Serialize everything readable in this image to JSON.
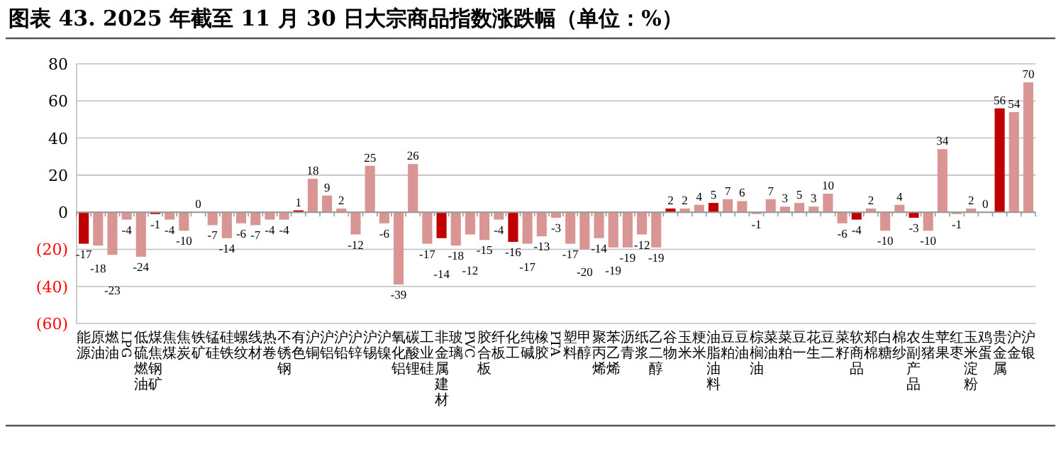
{
  "chart_data": {
    "type": "bar",
    "title": "图表 43. 2025 年截至 11 月 30 日大宗商品指数涨跌幅（单位：%）",
    "categories": [
      "能源",
      "原油",
      "燃油",
      "LPG",
      "低硫燃油",
      "煤焦钢矿",
      "焦煤",
      "焦炭",
      "铁矿",
      "锰硅",
      "硅铁",
      "螺纹",
      "线材",
      "热卷",
      "不锈钢",
      "有色",
      "沪铜",
      "沪铝",
      "沪铅",
      "沪锌",
      "沪锡",
      "沪镍",
      "氧化铝",
      "碳酸锂",
      "工业硅",
      "非金属建材",
      "玻璃",
      "PVC",
      "胶合板",
      "纤板",
      "化工",
      "纯碱",
      "橡胶",
      "PTA",
      "塑料",
      "甲醇",
      "聚丙烯",
      "苯乙烯",
      "沥青",
      "纸浆",
      "乙二醇",
      "谷物",
      "玉米",
      "粳米",
      "油脂油料",
      "豆粕",
      "豆油",
      "棕榈油",
      "菜油",
      "菜粕",
      "豆一",
      "花生",
      "豆二",
      "菜籽",
      "软商品",
      "郑棉",
      "白糖",
      "棉纱",
      "农副产品",
      "生猪",
      "苹果",
      "红枣",
      "玉米淀粉",
      "鸡蛋",
      "贵金属",
      "沪金",
      "沪银"
    ],
    "values": [
      -17,
      -18,
      -23,
      -4,
      -24,
      -1,
      -4,
      -10,
      0,
      -7,
      -14,
      -6,
      -7,
      -4,
      -4,
      1,
      18,
      9,
      2,
      -12,
      25,
      -6,
      -39,
      26,
      -17,
      -14,
      -18,
      -12,
      -15,
      -4,
      -16,
      -17,
      -13,
      -3,
      -17,
      -20,
      -14,
      -19,
      -19,
      -12,
      -19,
      2,
      2,
      4,
      5,
      7,
      6,
      -1,
      7,
      3,
      5,
      3,
      10,
      -6,
      -4,
      2,
      -10,
      4,
      -3,
      -10,
      34,
      -1,
      2,
      0,
      56,
      54,
      70
    ],
    "colors": [
      "#c00000",
      "#d99594",
      "#d99594",
      "#d99594",
      "#d99594",
      "#c00000",
      "#d99594",
      "#d99594",
      "#d99594",
      "#d99594",
      "#d99594",
      "#d99594",
      "#d99594",
      "#d99594",
      "#d99594",
      "#c00000",
      "#d99594",
      "#d99594",
      "#d99594",
      "#d99594",
      "#d99594",
      "#d99594",
      "#d99594",
      "#d99594",
      "#d99594",
      "#c00000",
      "#d99594",
      "#d99594",
      "#d99594",
      "#d99594",
      "#c00000",
      "#d99594",
      "#d99594",
      "#d99594",
      "#d99594",
      "#d99594",
      "#d99594",
      "#d99594",
      "#d99594",
      "#d99594",
      "#d99594",
      "#c00000",
      "#d99594",
      "#d99594",
      "#c00000",
      "#d99594",
      "#d99594",
      "#d99594",
      "#d99594",
      "#d99594",
      "#d99594",
      "#d99594",
      "#d99594",
      "#d99594",
      "#c00000",
      "#d99594",
      "#d99594",
      "#d99594",
      "#c00000",
      "#d99594",
      "#d99594",
      "#d99594",
      "#d99594",
      "#d99594",
      "#c00000",
      "#d99594",
      "#d99594"
    ],
    "ylim": [
      -60,
      80
    ],
    "yticks": [
      80,
      60,
      40,
      20,
      0,
      {
        "value": -20,
        "label": "(20)"
      },
      {
        "value": -40,
        "label": "(40)"
      },
      {
        "value": -60,
        "label": "(60)"
      }
    ],
    "grid": "y",
    "data_labels": true
  }
}
